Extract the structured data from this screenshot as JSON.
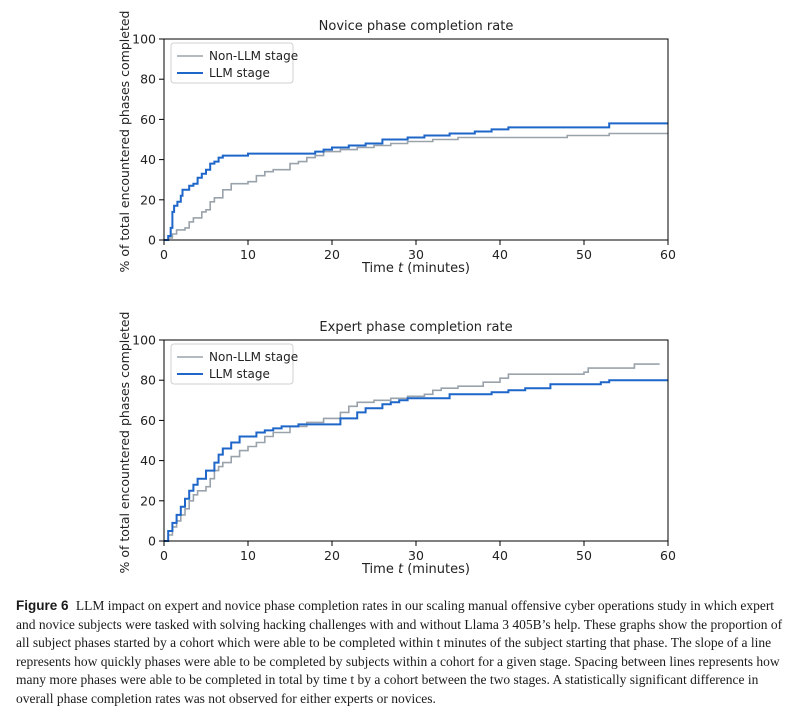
{
  "colors": {
    "non_llm": "#9aa3ab",
    "llm": "#1f66c9",
    "axis": "#000000"
  },
  "chart_data": [
    {
      "type": "line",
      "title": "Novice phase completion rate",
      "xlabel_prefix": "Time ",
      "xlabel_var": "t",
      "xlabel_suffix": " (minutes)",
      "ylabel": "% of total encountered phases completed",
      "xlim": [
        0,
        60
      ],
      "ylim": [
        0,
        100
      ],
      "xticks": [
        "0",
        "10",
        "20",
        "30",
        "40",
        "50",
        "60"
      ],
      "yticks": [
        "0",
        "20",
        "40",
        "60",
        "80",
        "100"
      ],
      "grid": false,
      "legend_position": "top-left",
      "series": [
        {
          "name": "Non-LLM stage",
          "color_key": "non_llm",
          "points": [
            [
              0,
              0
            ],
            [
              0.5,
              1
            ],
            [
              1,
              3
            ],
            [
              1.5,
              5
            ],
            [
              2.5,
              6
            ],
            [
              3,
              9
            ],
            [
              3.5,
              11
            ],
            [
              4.5,
              14
            ],
            [
              5,
              15
            ],
            [
              5.5,
              19
            ],
            [
              6,
              21
            ],
            [
              7,
              25
            ],
            [
              8,
              28
            ],
            [
              10,
              29
            ],
            [
              11,
              32
            ],
            [
              12,
              34
            ],
            [
              13,
              35
            ],
            [
              15,
              38
            ],
            [
              16,
              39
            ],
            [
              17,
              41
            ],
            [
              18,
              42
            ],
            [
              19,
              44
            ],
            [
              21,
              45
            ],
            [
              23,
              46
            ],
            [
              25,
              47
            ],
            [
              27,
              48
            ],
            [
              29,
              49
            ],
            [
              32,
              50
            ],
            [
              35,
              51
            ],
            [
              48,
              52
            ],
            [
              53,
              53
            ],
            [
              60,
              53
            ]
          ]
        },
        {
          "name": "LLM stage",
          "color_key": "llm",
          "points": [
            [
              0,
              0
            ],
            [
              0.5,
              2
            ],
            [
              0.8,
              6
            ],
            [
              1,
              14
            ],
            [
              1.2,
              17
            ],
            [
              1.6,
              19
            ],
            [
              2,
              22
            ],
            [
              2.2,
              25
            ],
            [
              3,
              27
            ],
            [
              3.5,
              28
            ],
            [
              4,
              31
            ],
            [
              4.5,
              33
            ],
            [
              5,
              35
            ],
            [
              5.5,
              38
            ],
            [
              6,
              39
            ],
            [
              6.5,
              41
            ],
            [
              7,
              42
            ],
            [
              10,
              43
            ],
            [
              18,
              44
            ],
            [
              19,
              45
            ],
            [
              20,
              46
            ],
            [
              22,
              47
            ],
            [
              24,
              48
            ],
            [
              26,
              50
            ],
            [
              29,
              51
            ],
            [
              31,
              52
            ],
            [
              34,
              53
            ],
            [
              37,
              54
            ],
            [
              39,
              55
            ],
            [
              41,
              56
            ],
            [
              53,
              58
            ],
            [
              60,
              58
            ]
          ]
        }
      ]
    },
    {
      "type": "line",
      "title": "Expert phase completion rate",
      "xlabel_prefix": "Time ",
      "xlabel_var": "t",
      "xlabel_suffix": " (minutes)",
      "ylabel": "% of total encountered phases completed",
      "xlim": [
        0,
        60
      ],
      "ylim": [
        0,
        100
      ],
      "xticks": [
        "0",
        "10",
        "20",
        "30",
        "40",
        "50",
        "60"
      ],
      "yticks": [
        "0",
        "20",
        "40",
        "60",
        "80",
        "100"
      ],
      "grid": false,
      "legend_position": "top-left",
      "series": [
        {
          "name": "Non-LLM stage",
          "color_key": "non_llm",
          "points": [
            [
              0,
              0
            ],
            [
              0.5,
              3
            ],
            [
              1,
              7
            ],
            [
              1.5,
              10
            ],
            [
              2,
              13
            ],
            [
              2.5,
              16
            ],
            [
              3,
              20
            ],
            [
              3.5,
              23
            ],
            [
              4,
              25
            ],
            [
              5,
              27
            ],
            [
              5.5,
              31
            ],
            [
              6,
              35
            ],
            [
              6.5,
              37
            ],
            [
              7,
              39
            ],
            [
              8,
              42
            ],
            [
              9,
              45
            ],
            [
              10,
              47
            ],
            [
              11,
              49
            ],
            [
              12,
              52
            ],
            [
              13,
              54
            ],
            [
              15,
              57
            ],
            [
              17,
              59
            ],
            [
              19,
              61
            ],
            [
              21,
              64
            ],
            [
              22,
              67
            ],
            [
              23,
              69
            ],
            [
              25,
              70
            ],
            [
              27,
              71
            ],
            [
              29,
              72
            ],
            [
              31,
              73
            ],
            [
              32,
              75
            ],
            [
              33,
              76
            ],
            [
              35,
              77
            ],
            [
              38,
              79
            ],
            [
              40,
              81
            ],
            [
              41,
              83
            ],
            [
              50,
              84
            ],
            [
              50.5,
              86
            ],
            [
              56,
              88
            ],
            [
              59,
              88
            ]
          ]
        },
        {
          "name": "LLM stage",
          "color_key": "llm",
          "points": [
            [
              0,
              0
            ],
            [
              0.5,
              5
            ],
            [
              1,
              9
            ],
            [
              1.5,
              13
            ],
            [
              2,
              17
            ],
            [
              2.5,
              21
            ],
            [
              3,
              25
            ],
            [
              3.5,
              28
            ],
            [
              4,
              31
            ],
            [
              5,
              35
            ],
            [
              6,
              39
            ],
            [
              6.5,
              43
            ],
            [
              7,
              46
            ],
            [
              8,
              49
            ],
            [
              9,
              52
            ],
            [
              10,
              52
            ],
            [
              11,
              54
            ],
            [
              12,
              55
            ],
            [
              13,
              56
            ],
            [
              14,
              57
            ],
            [
              16,
              58
            ],
            [
              18,
              58
            ],
            [
              21,
              61
            ],
            [
              23,
              64
            ],
            [
              24,
              66
            ],
            [
              26,
              68
            ],
            [
              27,
              69
            ],
            [
              28,
              70
            ],
            [
              29,
              71
            ],
            [
              34,
              73
            ],
            [
              39,
              74
            ],
            [
              41,
              75
            ],
            [
              43,
              76
            ],
            [
              46,
              78
            ],
            [
              52,
              79
            ],
            [
              53,
              80
            ],
            [
              60,
              80
            ]
          ]
        }
      ]
    }
  ],
  "caption": {
    "label": "Figure 6",
    "text": "LLM impact on expert and novice phase completion rates in our scaling manual offensive cyber operations study in which expert and novice subjects were tasked with solving hacking challenges with and without Llama 3 405B’s help. These graphs show the proportion of all subject phases started by a cohort which were able to be completed within t minutes of the subject starting that phase. The slope of a line represents how quickly phases were able to be completed by subjects within a cohort for a given stage. Spacing between lines represents how many more phases were able to be completed in total by time t by a cohort between the two stages. A statistically significant difference in overall phase completion rates was not observed for either experts or novices."
  }
}
